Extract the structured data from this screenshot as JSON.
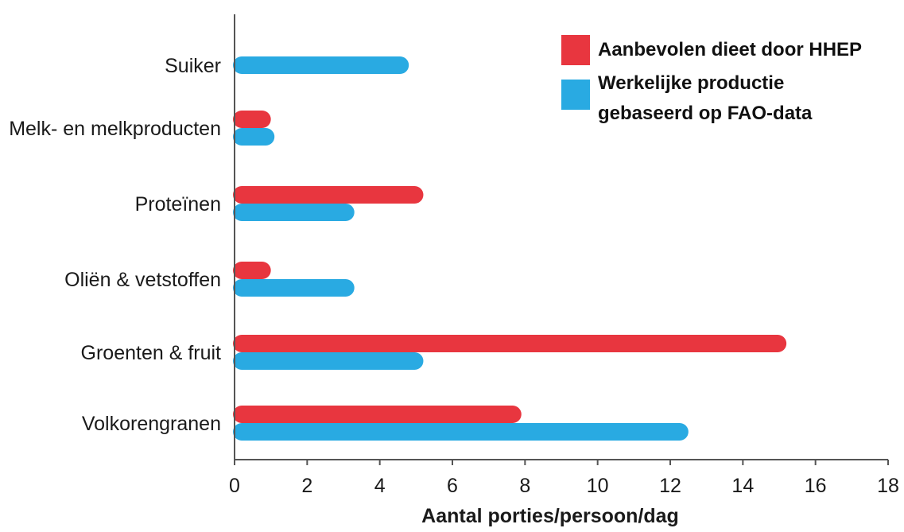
{
  "chart_data": {
    "type": "bar",
    "orientation": "horizontal",
    "categories": [
      "Suiker",
      "Melk- en melkproducten",
      "Proteïnen",
      "Oliën & vetstoffen",
      "Groenten & fruit",
      "Volkorengranen"
    ],
    "series": [
      {
        "name": "Aanbevolen dieet door HHEP",
        "color": "#e8363f",
        "values": [
          null,
          1.0,
          5.2,
          1.0,
          15.2,
          7.9
        ]
      },
      {
        "name_lines": [
          "Werkelijke productie",
          "gebaseerd op FAO-data"
        ],
        "color": "#29aae2",
        "values": [
          4.8,
          1.1,
          3.3,
          3.3,
          5.2,
          12.5
        ]
      }
    ],
    "xlabel": "Aantal porties/persoon/dag",
    "xlim": [
      0,
      18
    ],
    "xticks": [
      "0",
      "2",
      "4",
      "6",
      "8",
      "10",
      "12",
      "14",
      "16",
      "18"
    ],
    "grid": false,
    "legend_position": "top-right"
  }
}
